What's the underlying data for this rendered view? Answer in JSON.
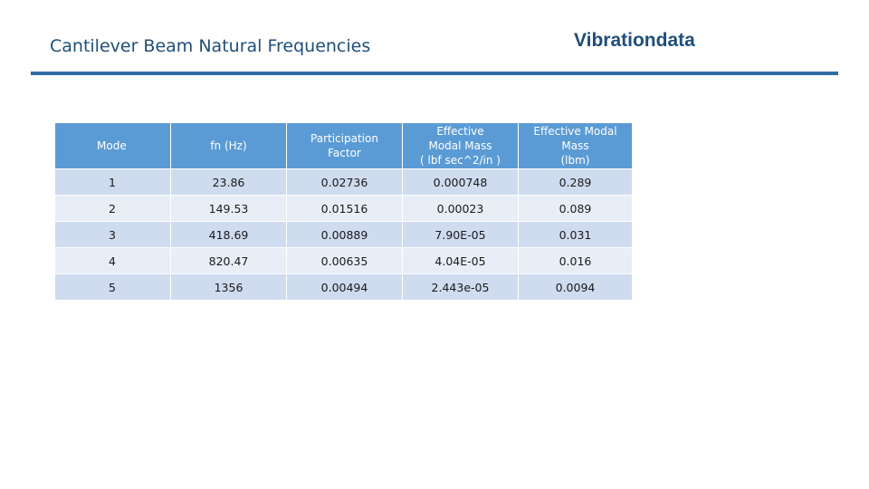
{
  "header": {
    "title": "Cantilever Beam Natural Frequencies",
    "brand": "Vibrationdata",
    "accent_color": "#2f6ea3"
  },
  "table": {
    "header_color": "#5b9bd5",
    "row_colors": [
      "#cfdbef",
      "#e8eef8"
    ],
    "columns": [
      {
        "lines": [
          "Mode"
        ]
      },
      {
        "lines": [
          "fn (Hz)"
        ]
      },
      {
        "lines": [
          "Participation",
          "Factor"
        ]
      },
      {
        "lines": [
          "Effective",
          "Modal Mass",
          "( lbf sec^2/in )"
        ]
      },
      {
        "lines": [
          "Effective Modal",
          "Mass",
          "(lbm)"
        ]
      }
    ],
    "rows": [
      [
        "1",
        "23.86",
        "0.02736",
        "0.000748",
        "0.289"
      ],
      [
        "2",
        "149.53",
        "0.01516",
        "0.00023",
        "0.089"
      ],
      [
        "3",
        "418.69",
        "0.00889",
        "7.90E-05",
        "0.031"
      ],
      [
        "4",
        "820.47",
        "0.00635",
        "4.04E-05",
        "0.016"
      ],
      [
        "5",
        "1356",
        "0.00494",
        "2.443e-05",
        "0.0094"
      ]
    ]
  }
}
